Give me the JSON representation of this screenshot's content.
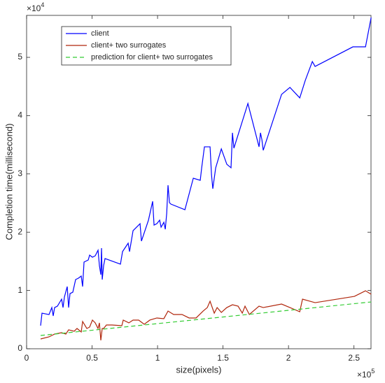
{
  "chart_data": {
    "type": "line",
    "xlabel": "size(pixels)",
    "ylabel": "Completion time(millisecond)",
    "x_multiplier": {
      "base": "×10",
      "exponent": "5"
    },
    "y_multiplier": {
      "base": "×10",
      "exponent": "4"
    },
    "xlim": [
      0,
      263000
    ],
    "ylim": [
      0,
      57200
    ],
    "xticks": [
      0,
      {
        "value": 50000,
        "label": "0.5"
      },
      {
        "value": 100000,
        "label": "1"
      },
      {
        "value": 150000,
        "label": "1.5"
      },
      {
        "value": 200000,
        "label": "2"
      },
      {
        "value": 250000,
        "label": "2.5"
      }
    ],
    "yticks": [
      0,
      {
        "value": 10000,
        "label": "1"
      },
      {
        "value": 20000,
        "label": "2"
      },
      {
        "value": 30000,
        "label": "3"
      },
      {
        "value": 40000,
        "label": "4"
      },
      {
        "value": 50000,
        "label": "5"
      }
    ],
    "grid": false,
    "legend": "northwest",
    "series": [
      {
        "name": "client",
        "color": "#0000ff",
        "dash": false,
        "x": [
          10700,
          11760,
          17110,
          19250,
          20320,
          21390,
          23530,
          26740,
          27810,
          28880,
          31020,
          32090,
          33150,
          35290,
          37430,
          39570,
          41710,
          42780,
          43850,
          47060,
          48130,
          50270,
          52410,
          54550,
          55610,
          56680,
          57220,
          57750,
          58820,
          59890,
          71660,
          73260,
          77540,
          78610,
          81290,
          86630,
          87700,
          93050,
          96260,
          97330,
          99470,
          101600,
          102700,
          104800,
          105900,
          107000,
          108000,
          109100,
          110200,
          120900,
          127300,
          132600,
          133700,
          135800,
          140100,
          141200,
          142200,
          144400,
          148700,
          152900,
          156100,
          157200,
          158300,
          169000,
          177500,
          178600,
          179700,
          180700,
          194700,
          201100,
          208600,
          212800,
          218200,
          220300,
          249200,
          258800,
          263100
        ],
        "values": [
          3960,
          6110,
          5870,
          7070,
          5640,
          7070,
          7310,
          8510,
          7070,
          8870,
          10670,
          7070,
          9470,
          9710,
          11870,
          12110,
          12470,
          10670,
          14870,
          15230,
          16070,
          15710,
          15950,
          16910,
          14270,
          12710,
          17270,
          11870,
          14270,
          15470,
          14510,
          16670,
          18110,
          16670,
          20260,
          21460,
          18470,
          22060,
          25300,
          21220,
          21460,
          22060,
          20860,
          21700,
          20500,
          23260,
          28060,
          25060,
          24820,
          23860,
          29260,
          28900,
          31050,
          34650,
          34650,
          29860,
          27460,
          31050,
          34290,
          31650,
          31050,
          37050,
          34410,
          42080,
          34650,
          37050,
          35850,
          34050,
          43640,
          44840,
          43040,
          46040,
          49280,
          48440,
          51800,
          51800,
          56830
        ]
      },
      {
        "name": "client+ two surrogates",
        "color": "#b0260c",
        "dash": false,
        "x": [
          10700,
          17110,
          21390,
          26740,
          29950,
          32090,
          36360,
          38500,
          41710,
          42780,
          45990,
          48130,
          50270,
          52410,
          54550,
          55610,
          56680,
          57750,
          58820,
          60960,
          65240,
          72730,
          73800,
          78070,
          81290,
          85560,
          89840,
          94120,
          99470,
          104800,
          108000,
          112300,
          118700,
          124100,
          129400,
          134800,
          138000,
          140100,
          143300,
          145500,
          148700,
          152900,
          157200,
          161500,
          164700,
          166800,
          170100,
          177500,
          180700,
          194700,
          201100,
          208600,
          210700,
          220300,
          250300,
          258800,
          263100
        ],
        "values": [
          1680,
          2040,
          2520,
          2760,
          2520,
          3240,
          3000,
          3480,
          2880,
          4680,
          3480,
          3720,
          4920,
          4440,
          3480,
          4440,
          1440,
          3480,
          3480,
          4080,
          4080,
          3960,
          4920,
          4440,
          4920,
          4920,
          4200,
          4920,
          5280,
          5160,
          6470,
          5880,
          5880,
          5280,
          5280,
          6470,
          7070,
          8150,
          6110,
          7070,
          6230,
          7070,
          7550,
          7310,
          6110,
          7310,
          5880,
          7310,
          7070,
          7670,
          7070,
          6350,
          8510,
          7910,
          8990,
          9950,
          9350
        ]
      },
      {
        "name": "prediction for client+ two surrogates",
        "color": "#33cc33",
        "dash": true,
        "x": [
          10700,
          263100
        ],
        "values": [
          2280,
          8030
        ]
      }
    ]
  }
}
